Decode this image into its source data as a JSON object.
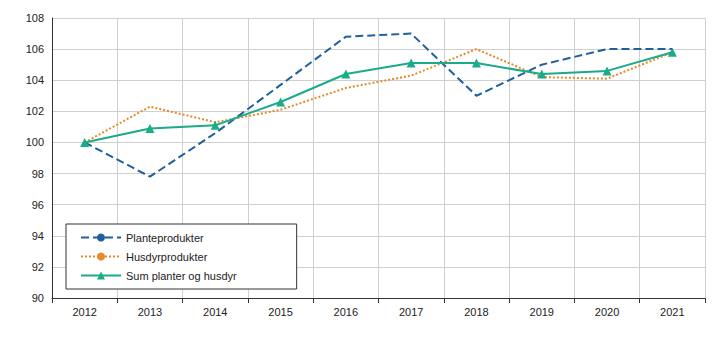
{
  "chart_data": {
    "type": "line",
    "categories": [
      "2012",
      "2013",
      "2014",
      "2015",
      "2016",
      "2017",
      "2018",
      "2019",
      "2020",
      "2021"
    ],
    "series": [
      {
        "name": "Planteprodukter",
        "color": "#1f5f9b",
        "line_style": "dashed",
        "marker": "none",
        "values": [
          100,
          97.8,
          100.6,
          103.7,
          106.8,
          107.0,
          103.0,
          105.0,
          106.0,
          106.0
        ]
      },
      {
        "name": "Husdyrprodukter",
        "color": "#e8892a",
        "line_style": "dotted",
        "marker": "none",
        "values": [
          100,
          102.3,
          101.3,
          102.1,
          103.5,
          104.3,
          106.0,
          104.2,
          104.1,
          105.8
        ]
      },
      {
        "name": "Sum planter og husdyr",
        "color": "#1aab8a",
        "line_style": "solid",
        "marker": "triangle",
        "values": [
          100,
          100.9,
          101.1,
          102.6,
          104.4,
          105.1,
          105.1,
          104.4,
          104.6,
          105.8
        ]
      }
    ],
    "ylim": [
      90,
      108
    ],
    "yticks": [
      90,
      92,
      94,
      96,
      98,
      100,
      102,
      104,
      106,
      108
    ],
    "grid": true,
    "legend": "lower left"
  }
}
